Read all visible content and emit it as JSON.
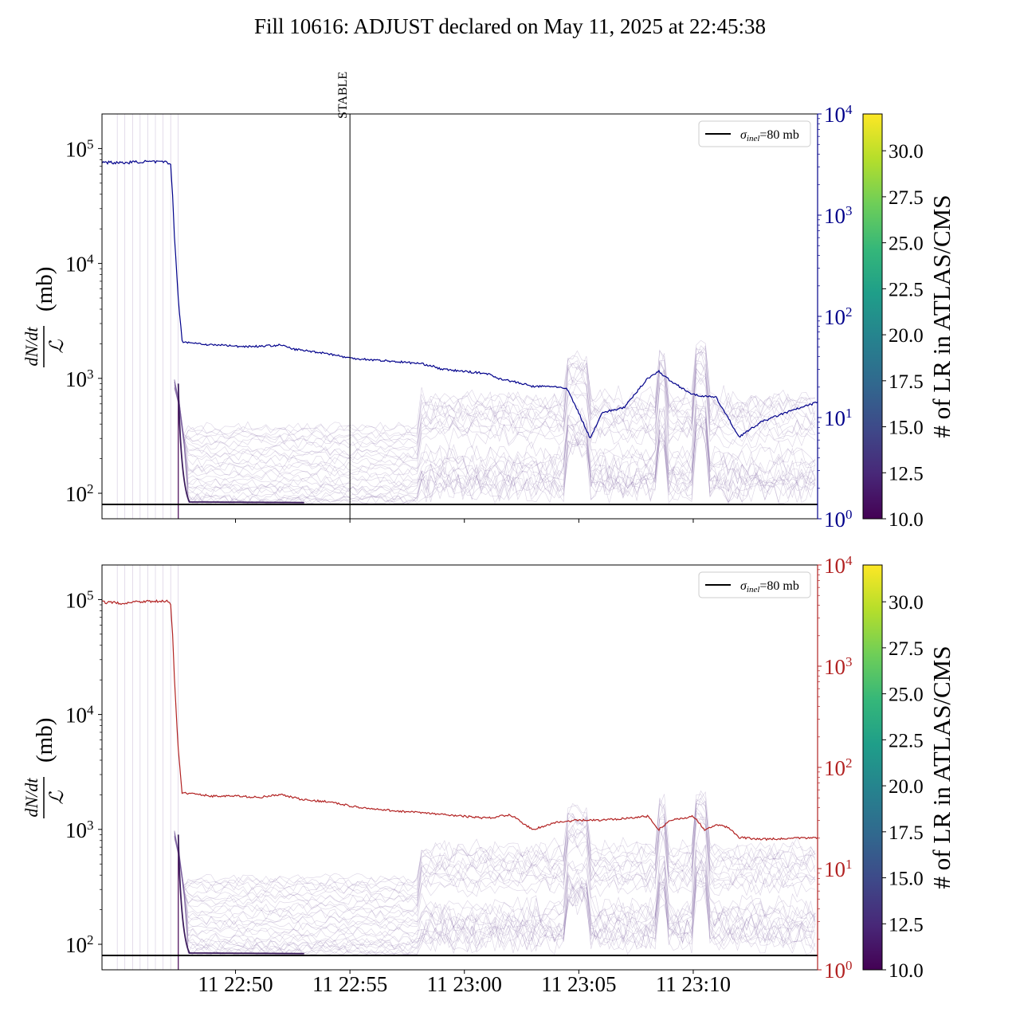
{
  "title": "Fill 10616: ADJUST declared on May 11, 2025 at 22:45:38",
  "colors": {
    "top_series": "#00008b",
    "bottom_series": "#b22222",
    "reference_line": "#000000",
    "faint_lines": "#7b5c9e",
    "colormap": [
      "#440154",
      "#482878",
      "#3e4989",
      "#31688e",
      "#26828e",
      "#1f9e89",
      "#35b779",
      "#6ece58",
      "#b5de2b",
      "#fde725"
    ]
  },
  "chart_data": [
    {
      "type": "line",
      "panel": "top",
      "ylabel": "(mb)",
      "ylabel_fraction": {
        "numerator": "dN/dt",
        "denominator": "ℒ"
      },
      "yscale": "log",
      "ylim": [
        60,
        200000
      ],
      "left_ticks": [
        {
          "label": "10",
          "exp": "2",
          "value": 100
        },
        {
          "label": "10",
          "exp": "3",
          "value": 1000
        },
        {
          "label": "10",
          "exp": "4",
          "value": 10000
        },
        {
          "label": "10",
          "exp": "5",
          "value": 100000
        }
      ],
      "right_axis": {
        "scale": "log",
        "range": [
          1,
          10000
        ],
        "color": "#00008b",
        "ticks": [
          {
            "label": "10",
            "exp": "0",
            "value": 1
          },
          {
            "label": "10",
            "exp": "1",
            "value": 10
          },
          {
            "label": "10",
            "exp": "2",
            "value": 100
          },
          {
            "label": "10",
            "exp": "3",
            "value": 1000
          },
          {
            "label": "10",
            "exp": "4",
            "value": 10000
          }
        ]
      },
      "xlim": [
        "2025-05-11 22:44:10",
        "2025-05-11 23:15:26"
      ],
      "vline": {
        "label": "STABLE",
        "x": "2025-05-11 22:55:00"
      },
      "hline": {
        "value": 80,
        "legend": "σ",
        "legend_sub": "inel",
        "legend_suffix": "=80 mb"
      },
      "legend_position": "upper right",
      "series": [
        {
          "color": "#00008b",
          "x": [
            "22:44:10",
            "22:45:00",
            "22:46:00",
            "22:47:00",
            "22:47:10",
            "22:47:15",
            "22:47:20",
            "22:47:30",
            "22:47:40",
            "22:48:00",
            "22:48:30",
            "22:49:00",
            "22:49:30",
            "22:50:00",
            "22:51:00",
            "22:52:00",
            "22:52:30",
            "22:53:00",
            "22:54:00",
            "22:55:00",
            "22:56:00",
            "22:57:00",
            "22:58:00",
            "22:58:30",
            "22:59:00",
            "23:00:00",
            "23:01:00",
            "23:01:30",
            "23:02:00",
            "23:02:30",
            "23:03:00",
            "23:04:00",
            "23:04:30",
            "23:05:00",
            "23:05:30",
            "23:06:00",
            "23:07:00",
            "23:08:00",
            "23:08:30",
            "23:09:00",
            "23:10:00",
            "23:10:30",
            "23:11:00",
            "23:12:00",
            "23:13:00",
            "23:14:00",
            "23:15:26"
          ],
          "y": [
            76000,
            75000,
            77000,
            76000,
            72000,
            40000,
            17000,
            5000,
            2100,
            2050,
            2000,
            1950,
            1950,
            1900,
            1900,
            1950,
            1800,
            1750,
            1650,
            1500,
            1450,
            1400,
            1350,
            1300,
            1200,
            1150,
            1100,
            1000,
            950,
            900,
            850,
            850,
            800,
            500,
            300,
            500,
            560,
            1000,
            1150,
            950,
            720,
            700,
            680,
            310,
            420,
            500,
            620
          ]
        }
      ]
    },
    {
      "type": "line",
      "panel": "bottom",
      "ylabel": "(mb)",
      "ylabel_fraction": {
        "numerator": "dN/dt",
        "denominator": "ℒ"
      },
      "yscale": "log",
      "ylim": [
        60,
        200000
      ],
      "left_ticks": [
        {
          "label": "10",
          "exp": "2",
          "value": 100
        },
        {
          "label": "10",
          "exp": "3",
          "value": 1000
        },
        {
          "label": "10",
          "exp": "4",
          "value": 10000
        },
        {
          "label": "10",
          "exp": "5",
          "value": 100000
        }
      ],
      "right_axis": {
        "scale": "log",
        "range": [
          1,
          10000
        ],
        "color": "#b22222",
        "ticks": [
          {
            "label": "10",
            "exp": "0",
            "value": 1
          },
          {
            "label": "10",
            "exp": "1",
            "value": 10
          },
          {
            "label": "10",
            "exp": "2",
            "value": 100
          },
          {
            "label": "10",
            "exp": "3",
            "value": 1000
          },
          {
            "label": "10",
            "exp": "4",
            "value": 10000
          }
        ]
      },
      "xlim": [
        "2025-05-11 22:44:10",
        "2025-05-11 23:15:26"
      ],
      "x_ticks": [
        "11 22:50",
        "11 22:55",
        "11 23:00",
        "11 23:05",
        "11 23:10"
      ],
      "hline": {
        "value": 80,
        "legend": "σ",
        "legend_sub": "inel",
        "legend_suffix": "=80 mb"
      },
      "legend_position": "upper right",
      "series": [
        {
          "color": "#b22222",
          "x": [
            "22:44:10",
            "22:45:00",
            "22:46:00",
            "22:47:00",
            "22:47:10",
            "22:47:15",
            "22:47:20",
            "22:47:30",
            "22:47:40",
            "22:48:00",
            "22:49:00",
            "22:50:00",
            "22:51:00",
            "22:52:00",
            "22:52:30",
            "22:53:00",
            "22:54:00",
            "22:55:00",
            "22:56:00",
            "22:57:00",
            "22:58:00",
            "22:59:00",
            "23:00:00",
            "23:01:00",
            "23:02:00",
            "23:02:30",
            "23:03:00",
            "23:04:00",
            "23:05:00",
            "23:06:00",
            "23:07:00",
            "23:08:00",
            "23:08:30",
            "23:09:00",
            "23:10:00",
            "23:10:30",
            "23:11:00",
            "23:11:30",
            "23:12:00",
            "23:13:00",
            "23:14:00",
            "23:15:26"
          ],
          "y": [
            95000,
            93000,
            97000,
            96000,
            90000,
            50000,
            20000,
            5000,
            2100,
            2050,
            1950,
            1950,
            1900,
            2000,
            1900,
            1800,
            1750,
            1600,
            1500,
            1450,
            1400,
            1350,
            1300,
            1250,
            1350,
            1150,
            1000,
            1150,
            1200,
            1200,
            1250,
            1300,
            1000,
            1200,
            1300,
            1000,
            1100,
            1050,
            850,
            820,
            830,
            850
          ]
        }
      ]
    }
  ],
  "colorbars": [
    {
      "label": "# of LR in ATLAS/CMS",
      "range": [
        10.0,
        32
      ],
      "ticks": [
        "10.0",
        "12.5",
        "15.0",
        "17.5",
        "20.0",
        "22.5",
        "25.0",
        "27.5",
        "30.0"
      ]
    },
    {
      "label": "# of LR in ATLAS/CMS",
      "range": [
        10.0,
        32
      ],
      "ticks": [
        "10.0",
        "12.5",
        "15.0",
        "17.5",
        "20.0",
        "22.5",
        "25.0",
        "27.5",
        "30.0"
      ]
    }
  ]
}
